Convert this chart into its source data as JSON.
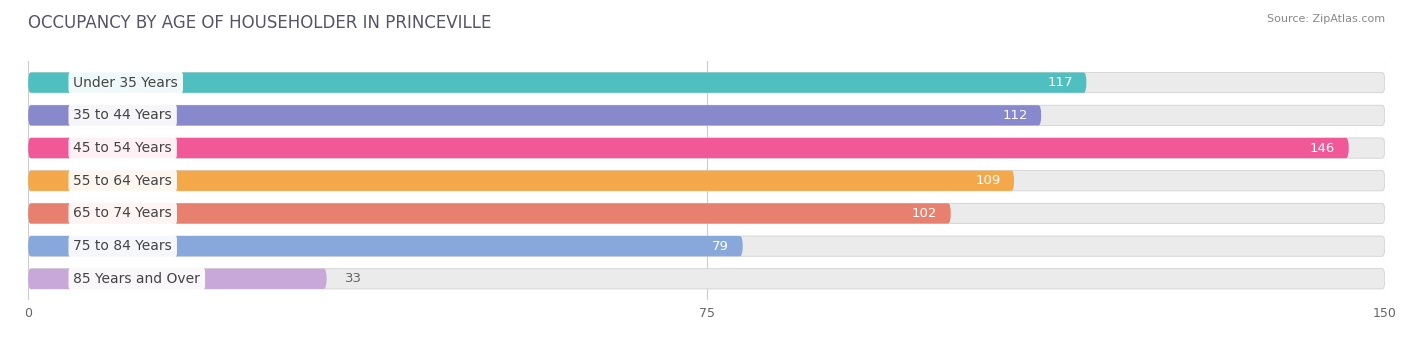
{
  "title": "OCCUPANCY BY AGE OF HOUSEHOLDER IN PRINCEVILLE",
  "source": "Source: ZipAtlas.com",
  "categories": [
    "Under 35 Years",
    "35 to 44 Years",
    "45 to 54 Years",
    "55 to 64 Years",
    "65 to 74 Years",
    "75 to 84 Years",
    "85 Years and Over"
  ],
  "values": [
    117,
    112,
    146,
    109,
    102,
    79,
    33
  ],
  "bar_colors": [
    "#50bfc0",
    "#8888cc",
    "#f05898",
    "#f5a84a",
    "#e88070",
    "#88a8dc",
    "#c8a8d8"
  ],
  "bar_bg_color": "#ebebeb",
  "xlim_max": 150,
  "xticks": [
    0,
    75,
    150
  ],
  "value_fontsize": 9.5,
  "label_fontsize": 10,
  "title_fontsize": 12,
  "background_color": "#ffffff",
  "label_text_colors": [
    "#444444",
    "#444444",
    "#444444",
    "#444444",
    "#444444",
    "#444444",
    "#444444"
  ]
}
